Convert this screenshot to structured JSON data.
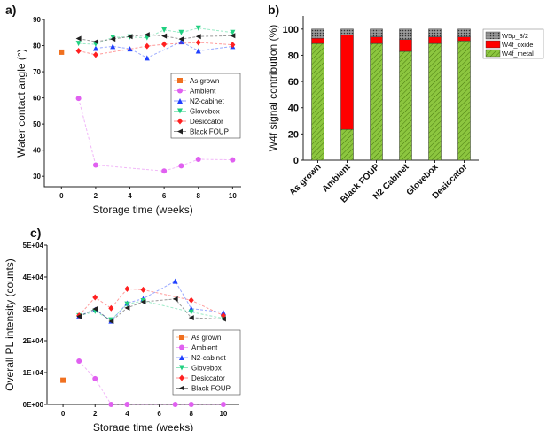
{
  "chart_data": [
    {
      "panel_label": "a)",
      "type": "line",
      "xlabel": "Storage time (weeks)",
      "ylabel": "Water contact angle (°)",
      "xlim": [
        -1,
        10.5
      ],
      "ylim": [
        26,
        90
      ],
      "xticks": [
        0,
        2,
        4,
        6,
        8,
        10
      ],
      "yticks": [
        30,
        40,
        50,
        60,
        70,
        80,
        90
      ],
      "legend_position": "center-right",
      "series": [
        {
          "name": "As grown",
          "color": "#f07020",
          "marker": "square",
          "points": [
            [
              0,
              77.5
            ]
          ]
        },
        {
          "name": "Ambient",
          "color": "#e060f0",
          "marker": "circle",
          "points": [
            [
              1,
              59.8
            ],
            [
              2,
              34.3
            ],
            [
              6,
              32
            ],
            [
              7,
              34
            ],
            [
              8,
              36.5
            ],
            [
              10,
              36.3
            ]
          ]
        },
        {
          "name": "N2-cabinet",
          "color": "#2040ff",
          "marker": "triangle-up",
          "points": [
            [
              2,
              79
            ],
            [
              3,
              79.7
            ],
            [
              4,
              78.8
            ],
            [
              5,
              75.3
            ],
            [
              7,
              81.5
            ],
            [
              8,
              78
            ],
            [
              10,
              79.7
            ]
          ]
        },
        {
          "name": "Glovebox",
          "color": "#20d080",
          "marker": "triangle-down",
          "points": [
            [
              1,
              80.8
            ],
            [
              2,
              80.5
            ],
            [
              3,
              83.2
            ],
            [
              4,
              83.3
            ],
            [
              5,
              83
            ],
            [
              6,
              86
            ],
            [
              7,
              85
            ],
            [
              8,
              86.7
            ],
            [
              10,
              85
            ]
          ]
        },
        {
          "name": "Desiccator",
          "color": "#ff2020",
          "marker": "diamond",
          "points": [
            [
              1,
              78
            ],
            [
              2,
              76.5
            ],
            [
              5,
              79.8
            ],
            [
              6,
              80.5
            ],
            [
              8,
              81.2
            ],
            [
              10,
              80.3
            ]
          ]
        },
        {
          "name": "Black FOUP",
          "color": "#202020",
          "marker": "triangle-left",
          "points": [
            [
              1,
              82.7
            ],
            [
              2,
              81.5
            ],
            [
              3,
              82.5
            ],
            [
              4,
              83.5
            ],
            [
              5,
              84.2
            ],
            [
              6,
              83.7
            ],
            [
              7,
              82.5
            ],
            [
              8,
              83.5
            ],
            [
              10,
              83.8
            ]
          ]
        }
      ]
    },
    {
      "panel_label": "b)",
      "type": "bar",
      "stacked": true,
      "ylabel": "W4f signal contribution (%)",
      "ylim": [
        0,
        110
      ],
      "yticks": [
        0,
        20,
        40,
        60,
        80,
        100
      ],
      "categories": [
        "As grown",
        "Ambient",
        "Black FOUP",
        "N2 Cabinet",
        "Glovebox",
        "Desiccator"
      ],
      "legend_position": "top-right",
      "series": [
        {
          "name": "W4f_metal",
          "color": "#8cc63f",
          "pattern": "hatch",
          "values": [
            89,
            23.5,
            89,
            83,
            89,
            91
          ]
        },
        {
          "name": "W4f_oxide",
          "color": "#ff0000",
          "values": [
            4,
            72,
            5,
            9,
            5,
            3
          ]
        },
        {
          "name": "W5p_3/2",
          "color": "#808080",
          "pattern": "dots",
          "values": [
            7,
            4.5,
            6,
            8,
            6,
            6
          ]
        }
      ],
      "legend_order": [
        "W5p_3/2",
        "W4f_oxide",
        "W4f_metal"
      ]
    },
    {
      "panel_label": "c)",
      "type": "line",
      "xlabel": "Storage time (weeks)",
      "ylabel": "Overall PL intensity (counts)",
      "xlim": [
        -1,
        11
      ],
      "ylim": [
        0,
        50000
      ],
      "xticks": [
        0,
        2,
        4,
        6,
        8,
        10
      ],
      "yticks": [
        0,
        10000,
        20000,
        30000,
        40000,
        50000
      ],
      "ytick_labels": [
        "0E+00",
        "1E+04",
        "2E+04",
        "3E+04",
        "4E+04",
        "5E+04"
      ],
      "legend_position": "bottom-right",
      "series": [
        {
          "name": "As grown",
          "color": "#f07020",
          "marker": "square",
          "points": [
            [
              0,
              7600
            ]
          ]
        },
        {
          "name": "Ambient",
          "color": "#e060f0",
          "marker": "circle",
          "points": [
            [
              1,
              13600
            ],
            [
              2,
              8100
            ],
            [
              3,
              0
            ],
            [
              4,
              0
            ],
            [
              7,
              0
            ],
            [
              8,
              0
            ],
            [
              10,
              0
            ]
          ]
        },
        {
          "name": "N2-cabinet",
          "color": "#2040ff",
          "marker": "triangle-up",
          "points": [
            [
              1,
              27800
            ],
            [
              2,
              29800
            ],
            [
              3,
              26200
            ],
            [
              4,
              31800
            ],
            [
              5,
              33200
            ],
            [
              7,
              38700
            ],
            [
              8,
              30100
            ],
            [
              10,
              28900
            ]
          ]
        },
        {
          "name": "Glovebox",
          "color": "#20d080",
          "marker": "triangle-down",
          "points": [
            [
              1,
              27800
            ],
            [
              2,
              29200
            ],
            [
              3,
              26500
            ],
            [
              4,
              31500
            ],
            [
              5,
              32500
            ],
            [
              8,
              29000
            ],
            [
              10,
              27000
            ]
          ]
        },
        {
          "name": "Desiccator",
          "color": "#ff2020",
          "marker": "diamond",
          "points": [
            [
              1,
              27900
            ],
            [
              2,
              33600
            ],
            [
              3,
              30200
            ],
            [
              4,
              36300
            ],
            [
              5,
              36000
            ],
            [
              8,
              32700
            ],
            [
              10,
              27900
            ]
          ]
        },
        {
          "name": "Black FOUP",
          "color": "#202020",
          "marker": "triangle-left",
          "points": [
            [
              1,
              27600
            ],
            [
              2,
              30000
            ],
            [
              3,
              26100
            ],
            [
              4,
              30300
            ],
            [
              5,
              32200
            ],
            [
              7,
              33100
            ],
            [
              8,
              27200
            ],
            [
              10,
              26800
            ]
          ]
        }
      ]
    }
  ]
}
